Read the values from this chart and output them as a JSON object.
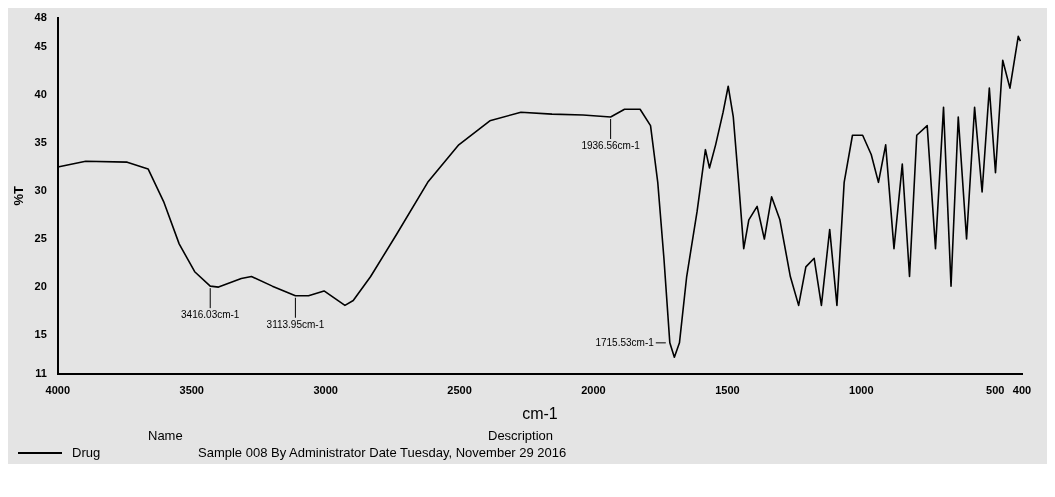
{
  "chart_data": {
    "type": "line",
    "xlabel": "cm-1",
    "ylabel": "%T",
    "xlim": [
      4000,
      400
    ],
    "xticks": [
      4000,
      3500,
      3000,
      2500,
      2000,
      1500,
      1000,
      500,
      400
    ],
    "ylim": [
      11,
      48
    ],
    "yticks": [
      11,
      15,
      20,
      25,
      30,
      35,
      40,
      45,
      48
    ],
    "grid": false,
    "legend": "bottom left",
    "marker": "none",
    "line_style": "solid",
    "series": [
      {
        "name": "Drug",
        "color": "#000000",
        "x": [
          4000,
          3896,
          3741,
          3663,
          3605,
          3547,
          3489,
          3431,
          3400,
          3315,
          3277,
          3199,
          3113,
          3064,
          3006,
          2928,
          2897,
          2832,
          2735,
          2619,
          2503,
          2387,
          2271,
          2155,
          2039,
          1936,
          1884,
          1826,
          1787,
          1760,
          1737,
          1715,
          1698,
          1679,
          1652,
          1613,
          1582,
          1567,
          1544,
          1516,
          1497,
          1478,
          1458,
          1439,
          1420,
          1389,
          1362,
          1335,
          1304,
          1265,
          1234,
          1207,
          1176,
          1149,
          1118,
          1091,
          1064,
          1033,
          995,
          963,
          936,
          909,
          878,
          847,
          820,
          793,
          754,
          723,
          693,
          665,
          638,
          607,
          577,
          549,
          522,
          499,
          472,
          445,
          414,
          406
        ],
        "values": [
          32.5,
          33.1,
          33,
          32.3,
          28.9,
          24.5,
          21.6,
          20.1,
          20,
          20.9,
          21.1,
          20.1,
          19.1,
          19.1,
          19.6,
          18.1,
          18.6,
          21.1,
          25.5,
          30.9,
          34.8,
          37.3,
          38.2,
          38,
          37.9,
          37.7,
          38.5,
          38.5,
          36.8,
          30.9,
          23,
          14.2,
          12.7,
          14.2,
          21.1,
          27.9,
          34.3,
          32.4,
          34.8,
          38.2,
          40.9,
          37.7,
          30.9,
          24,
          27,
          28.4,
          25,
          29.4,
          27,
          21.1,
          18.1,
          22.1,
          23,
          18.1,
          26,
          18.1,
          30.9,
          35.8,
          35.8,
          33.8,
          30.9,
          34.8,
          24,
          32.8,
          21.1,
          35.8,
          36.8,
          24,
          38.7,
          20.1,
          37.7,
          25,
          38.7,
          29.9,
          40.7,
          31.9,
          43.6,
          40.7,
          46.1,
          45.6
        ]
      }
    ],
    "annotations": [
      {
        "text": "3416.03cm-1",
        "x": 3431,
        "y": 20.1
      },
      {
        "text": "3113.95cm-1",
        "x": 3113,
        "y": 19.1
      },
      {
        "text": "1936.56cm-1",
        "x": 1936,
        "y": 37.7
      },
      {
        "text": "1715.53cm-1",
        "x": 1715,
        "y": 14.2
      },
      "Name",
      "Description",
      "Sample 008 By Administrator Date Tuesday, November 29 2016"
    ]
  }
}
